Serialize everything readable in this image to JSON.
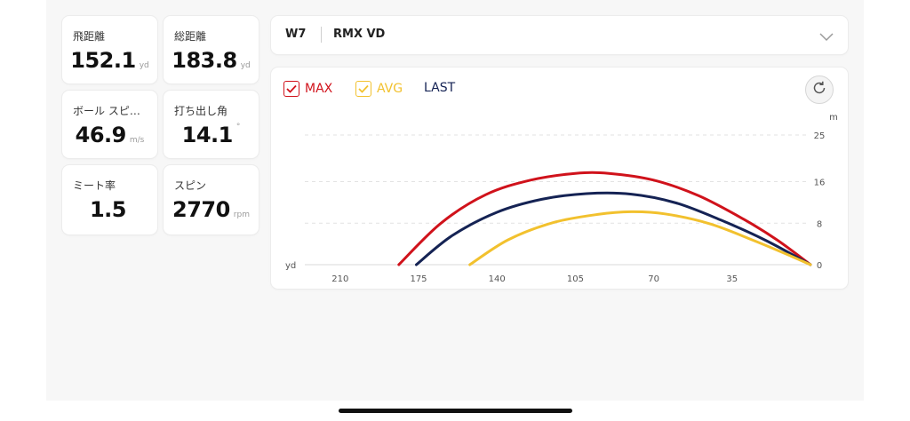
{
  "stats": [
    {
      "label": "飛距離",
      "value": "152.1",
      "unit": "yd"
    },
    {
      "label": "総距離",
      "value": "183.8",
      "unit": "yd"
    },
    {
      "label": "ボール スピ…",
      "value": "46.9",
      "unit": "m/s"
    },
    {
      "label": "打ち出し角",
      "value": "14.1",
      "unit": "°"
    },
    {
      "label": "ミート率",
      "value": "1.5",
      "unit": ""
    },
    {
      "label": "スピン",
      "value": "2770",
      "unit": "rpm"
    }
  ],
  "club": {
    "number": "W7",
    "name": "RMX VD"
  },
  "legend": {
    "max": "MAX",
    "avg": "AVG",
    "last": "LAST"
  },
  "colors": {
    "max": "#d0121b",
    "avg": "#f2c12e",
    "last": "#152354"
  },
  "icons": {
    "dropdown": "chevron-down-icon",
    "refresh": "refresh-icon",
    "check": "check-icon"
  },
  "chart_data": {
    "type": "line",
    "xlabel": "yd",
    "ylabel": "m",
    "x_direction": "reversed",
    "xlim": [
      255,
      0
    ],
    "ylim": [
      0,
      25
    ],
    "x_ticks": [
      210,
      175,
      140,
      105,
      70,
      35
    ],
    "y_ticks": [
      0,
      8,
      16,
      25
    ],
    "grid": "horizontal dashed",
    "series": [
      {
        "name": "MAX",
        "color": "#d0121b",
        "x": [
          183.8,
          165,
          145,
          125,
          105,
          90,
          70,
          50,
          30,
          15,
          0
        ],
        "y": [
          0,
          8,
          13.5,
          16.3,
          17.6,
          17.6,
          16.3,
          13.3,
          8.8,
          4.8,
          0
        ]
      },
      {
        "name": "LAST",
        "color": "#152354",
        "x": [
          176,
          160,
          140,
          120,
          100,
          80,
          60,
          40,
          20,
          0
        ],
        "y": [
          0,
          5.6,
          10.1,
          12.6,
          13.7,
          13.6,
          11.9,
          8.6,
          4.7,
          0
        ]
      },
      {
        "name": "AVG",
        "color": "#f2c12e",
        "x": [
          152.1,
          135,
          115,
          95,
          80,
          65,
          45,
          25,
          10,
          0
        ],
        "y": [
          0,
          4.8,
          8.1,
          9.7,
          10.2,
          9.8,
          7.9,
          4.6,
          1.9,
          0
        ]
      }
    ]
  }
}
